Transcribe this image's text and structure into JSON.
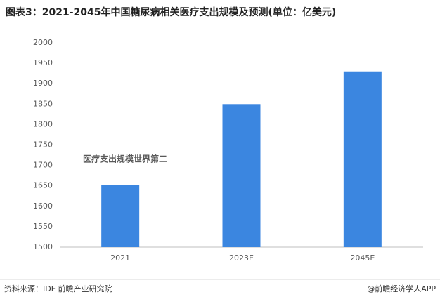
{
  "chart_data": {
    "type": "bar",
    "title": "图表3：2021-2045年中国糖尿病相关医疗支出规模及预测(单位：亿美元)",
    "categories": [
      "2021",
      "2023E",
      "2045E"
    ],
    "values": [
      1652,
      1850,
      1930
    ],
    "color": "#3b86e0",
    "ylim": [
      1500,
      2000
    ],
    "yticks": [
      1500,
      1550,
      1600,
      1650,
      1700,
      1750,
      1800,
      1850,
      1900,
      1950,
      2000
    ],
    "grid": false,
    "annotation": "医疗支出规模世界第二",
    "annotation_color": "#c00000",
    "source": "资料来源：IDF 前瞻产业研究院",
    "credit": "@前瞻经济学人APP"
  }
}
